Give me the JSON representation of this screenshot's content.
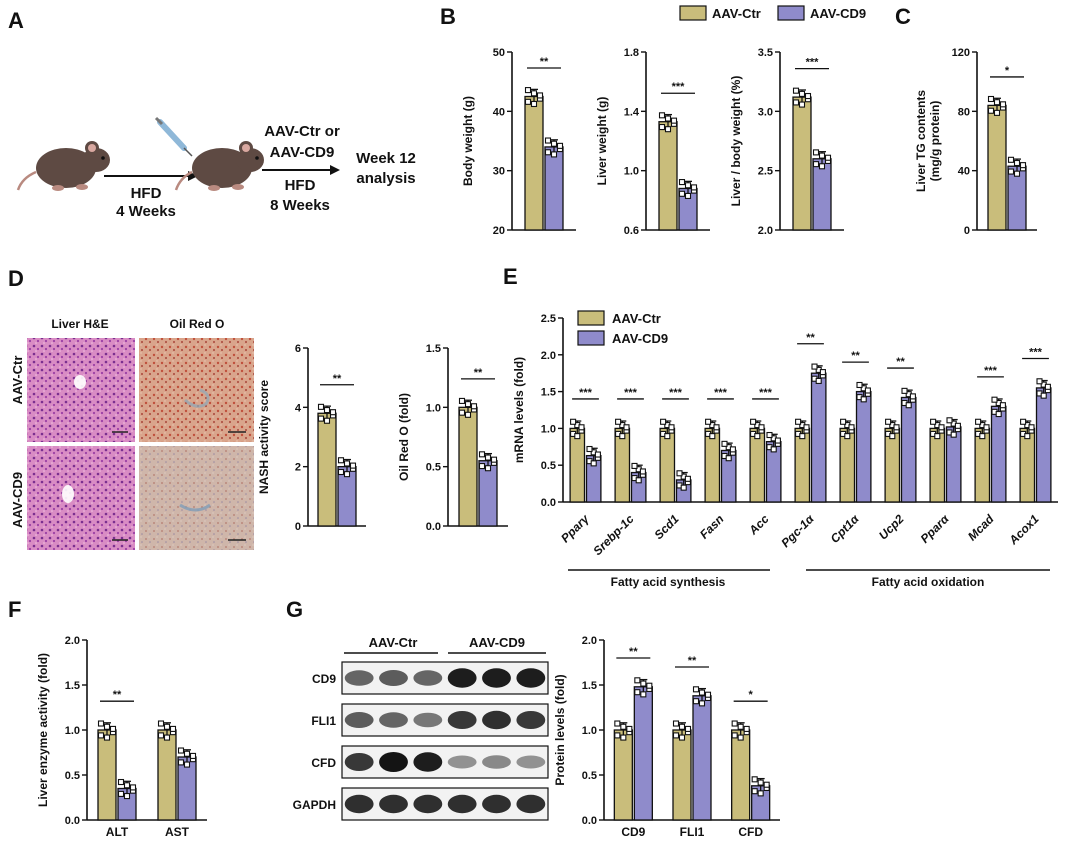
{
  "colors": {
    "ctr": "#c9bd7b",
    "cd9": "#8f8bcb",
    "ink": "#111111"
  },
  "panel_labels": {
    "A": "A",
    "B": "B",
    "C": "C",
    "D": "D",
    "E": "E",
    "F": "F",
    "G": "G"
  },
  "legend": {
    "ctr": "AAV-Ctr",
    "cd9": "AAV-CD9"
  },
  "schema": {
    "step1": "HFD",
    "step1_sub": "4 Weeks",
    "step2_line1": "AAV-Ctr or",
    "step2_line2": "AAV-CD9",
    "step3": "HFD",
    "step3_sub": "8 Weeks",
    "outcome_line1": "Week 12",
    "outcome_line2": "analysis"
  },
  "histology": {
    "col1": "Liver H&E",
    "col2": "Oil Red O",
    "row1": "AAV-Ctr",
    "row2": "AAV-CD9"
  },
  "western": {
    "group1": "AAV-Ctr",
    "group2": "AAV-CD9",
    "rows": [
      "CD9",
      "FLI1",
      "CFD",
      "GAPDH"
    ],
    "intensity": [
      [
        0.55,
        0.6,
        0.55,
        0.95,
        0.95,
        0.95
      ],
      [
        0.6,
        0.55,
        0.45,
        0.8,
        0.85,
        0.8
      ],
      [
        0.8,
        1.0,
        0.95,
        0.3,
        0.35,
        0.3
      ],
      [
        0.85,
        0.85,
        0.85,
        0.85,
        0.85,
        0.85
      ]
    ]
  },
  "e_groups": {
    "synthesis": "Fatty acid synthesis",
    "oxidation": "Fatty acid oxidation"
  },
  "chart_data": [
    {
      "id": "B1",
      "type": "bar",
      "ylabel": "Body weight (g)",
      "ylim": [
        20,
        50
      ],
      "yticks": [
        20,
        30,
        40,
        50
      ],
      "categories": [
        ""
      ],
      "series": [
        {
          "name": "AAV-Ctr",
          "values": [
            42.5
          ]
        },
        {
          "name": "AAV-CD9",
          "values": [
            34.0
          ]
        }
      ],
      "sig": [
        "**"
      ]
    },
    {
      "id": "B2",
      "type": "bar",
      "ylabel": "Liver weight (g)",
      "ylim": [
        0.6,
        1.8
      ],
      "yticks": [
        0.6,
        1.0,
        1.4,
        1.8
      ],
      "categories": [
        ""
      ],
      "series": [
        {
          "name": "AAV-Ctr",
          "values": [
            1.33
          ]
        },
        {
          "name": "AAV-CD9",
          "values": [
            0.88
          ]
        }
      ],
      "sig": [
        "***"
      ]
    },
    {
      "id": "B3",
      "type": "bar",
      "ylabel": "Liver / body weight (%)",
      "ylim": [
        2.0,
        3.5
      ],
      "yticks": [
        2.0,
        2.5,
        3.0,
        3.5
      ],
      "categories": [
        ""
      ],
      "series": [
        {
          "name": "AAV-Ctr",
          "values": [
            3.12
          ]
        },
        {
          "name": "AAV-CD9",
          "values": [
            2.6
          ]
        }
      ],
      "sig": [
        "***"
      ]
    },
    {
      "id": "C",
      "type": "bar",
      "ylabel": "Liver TG contents",
      "ylabel2": "(mg/g protein)",
      "ylim": [
        0,
        120
      ],
      "yticks": [
        0,
        40,
        80,
        120
      ],
      "categories": [
        ""
      ],
      "series": [
        {
          "name": "AAV-Ctr",
          "values": [
            84
          ]
        },
        {
          "name": "AAV-CD9",
          "values": [
            43
          ]
        }
      ],
      "sig": [
        "*"
      ]
    },
    {
      "id": "D1",
      "type": "bar",
      "ylabel": "NASH activity score",
      "ylim": [
        0,
        6
      ],
      "yticks": [
        0,
        2,
        4,
        6
      ],
      "categories": [
        ""
      ],
      "series": [
        {
          "name": "AAV-Ctr",
          "values": [
            3.8
          ]
        },
        {
          "name": "AAV-CD9",
          "values": [
            2.0
          ]
        }
      ],
      "sig": [
        "**"
      ]
    },
    {
      "id": "D2",
      "type": "bar",
      "ylabel": "Oil Red O (fold)",
      "ylim": [
        0,
        1.5
      ],
      "yticks": [
        0.0,
        0.5,
        1.0,
        1.5
      ],
      "categories": [
        ""
      ],
      "series": [
        {
          "name": "AAV-Ctr",
          "values": [
            1.0
          ]
        },
        {
          "name": "AAV-CD9",
          "values": [
            0.55
          ]
        }
      ],
      "sig": [
        "**"
      ]
    },
    {
      "id": "E",
      "type": "bar",
      "ylabel": "mRNA levels (fold)",
      "ylim": [
        0,
        2.5
      ],
      "yticks": [
        0.0,
        0.5,
        1.0,
        1.5,
        2.0,
        2.5
      ],
      "categories": [
        "Pparγ",
        "Srebp-1c",
        "Scd1",
        "Fasn",
        "Acc",
        "Pgc-1α",
        "Cpt1α",
        "Ucp2",
        "Pparα",
        "Mcad",
        "Acox1"
      ],
      "series": [
        {
          "name": "AAV-Ctr",
          "values": [
            1.0,
            1.0,
            1.0,
            1.0,
            1.0,
            1.0,
            1.0,
            1.0,
            1.0,
            1.0,
            1.0
          ]
        },
        {
          "name": "AAV-CD9",
          "values": [
            0.63,
            0.4,
            0.3,
            0.7,
            0.82,
            1.75,
            1.5,
            1.42,
            1.02,
            1.3,
            1.55
          ]
        }
      ],
      "sig": [
        "***",
        "***",
        "***",
        "***",
        "***",
        "**",
        "**",
        "**",
        "",
        "***",
        "***"
      ]
    },
    {
      "id": "F",
      "type": "bar",
      "ylabel": "Liver enzyme activity (fold)",
      "ylim": [
        0,
        2.0
      ],
      "yticks": [
        0.0,
        0.5,
        1.0,
        1.5,
        2.0
      ],
      "categories": [
        "ALT",
        "AST"
      ],
      "series": [
        {
          "name": "AAV-Ctr",
          "values": [
            1.0,
            1.0
          ]
        },
        {
          "name": "AAV-CD9",
          "values": [
            0.35,
            0.7
          ]
        }
      ],
      "sig": [
        "**",
        ""
      ]
    },
    {
      "id": "G",
      "type": "bar",
      "ylabel": "Protein levels (fold)",
      "ylim": [
        0,
        2.0
      ],
      "yticks": [
        0.0,
        0.5,
        1.0,
        1.5,
        2.0
      ],
      "categories": [
        "CD9",
        "FLI1",
        "CFD"
      ],
      "series": [
        {
          "name": "AAV-Ctr",
          "values": [
            1.0,
            1.0,
            1.0
          ]
        },
        {
          "name": "AAV-CD9",
          "values": [
            1.48,
            1.38,
            0.38
          ]
        }
      ],
      "sig": [
        "**",
        "**",
        "*"
      ]
    }
  ]
}
